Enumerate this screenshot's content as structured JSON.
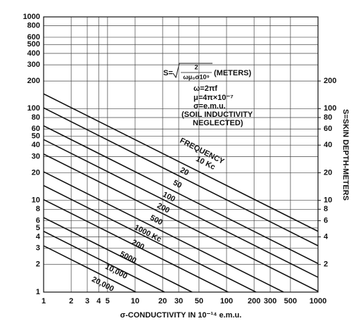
{
  "chart_data": {
    "type": "line",
    "xlabel": "σ-CONDUCTIVITY IN 10⁻¹⁴ e.m.u.",
    "y2label": "S=SKIN DEPTH-METERS",
    "log_x": true,
    "log_y": true,
    "grid": true,
    "xlim": [
      1,
      1000
    ],
    "xticks": [
      1,
      2,
      3,
      4,
      5,
      10,
      20,
      30,
      50,
      100,
      200,
      300,
      500,
      1000
    ],
    "ylim": [
      1,
      1000
    ],
    "yticks": [
      1,
      2,
      3,
      4,
      5,
      6,
      8,
      10,
      20,
      30,
      40,
      50,
      60,
      80,
      100,
      200,
      300,
      400,
      500,
      600,
      800,
      1000
    ],
    "y2lim": [
      1,
      1000
    ],
    "y2ticks": [
      2,
      4,
      6,
      8,
      10,
      20,
      40,
      60,
      80,
      100,
      200
    ],
    "annotations": {
      "formula_lhs": "S=",
      "formula_num": "2",
      "formula_den": "ωμ₀σ10⁹",
      "formula_unit": "(METERS)",
      "omega": "ω=2πf",
      "mu": "μ=4π×10⁻⁷",
      "sigma": "σ=e.m.u.",
      "note1": "(SOIL INDUCTIVITY",
      "note2": "NEGLECTED)",
      "frequency": "FREQUENCY"
    },
    "series": [
      {
        "name": "10 Kc",
        "color": "#111111",
        "x": [
          1,
          1000
        ],
        "values": [
          145,
          4.6
        ]
      },
      {
        "name": "20",
        "color": "#111111",
        "x": [
          1,
          1000
        ],
        "values": [
          102,
          3.2
        ]
      },
      {
        "name": "50",
        "color": "#111111",
        "x": [
          1,
          1000
        ],
        "values": [
          65,
          2.05
        ]
      },
      {
        "name": "100",
        "color": "#111111",
        "x": [
          1,
          1000
        ],
        "values": [
          46,
          1.45
        ]
      },
      {
        "name": "200",
        "color": "#111111",
        "x": [
          1,
          1000
        ],
        "values": [
          32,
          1.02
        ]
      },
      {
        "name": "500",
        "color": "#111111",
        "x": [
          1,
          420
        ],
        "values": [
          20.5,
          1
        ]
      },
      {
        "name": "1000 Kc",
        "color": "#111111",
        "x": [
          1,
          210
        ],
        "values": [
          14.5,
          1
        ]
      },
      {
        "name": "200",
        "color": "#111111",
        "x": [
          1,
          104
        ],
        "values": [
          10.2,
          1
        ]
      },
      {
        "name": "5000",
        "color": "#111111",
        "x": [
          1,
          42
        ],
        "values": [
          6.5,
          1
        ]
      },
      {
        "name": "10,000",
        "color": "#111111",
        "x": [
          1,
          21
        ],
        "values": [
          4.6,
          1
        ]
      },
      {
        "name": "20,000",
        "color": "#111111",
        "x": [
          1,
          10.2
        ],
        "values": [
          3.2,
          1
        ]
      }
    ]
  }
}
